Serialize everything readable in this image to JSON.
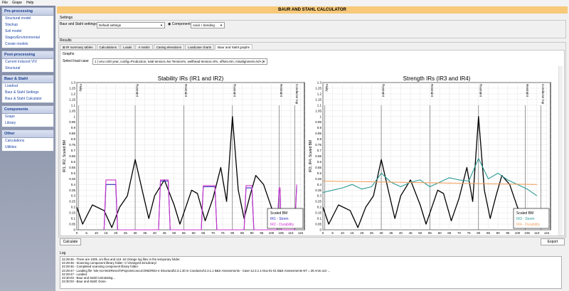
{
  "menu": [
    "File",
    "Grape",
    "Help"
  ],
  "sidebar": [
    {
      "head": "Pre-processing",
      "items": [
        "Structural model",
        "Stackup",
        "Soil model",
        "Stages/Environmental",
        "Create models"
      ]
    },
    {
      "head": "Post-processing",
      "items": [
        "Current induced VIV",
        "Structural"
      ]
    },
    {
      "head": "Baur & Stahl",
      "items": [
        "Loadout",
        "Baur & Stahl Settings",
        "Baur & Stahl Calculator"
      ]
    },
    {
      "head": "Components",
      "items": [
        "Grape",
        "Library"
      ]
    },
    {
      "head": "Other",
      "items": [
        "Calculations",
        "Utilities"
      ]
    }
  ],
  "title": "BAUR AND STAHL CALCULATOR",
  "settings": {
    "group": "Settings",
    "label": "Baur and Stahl settings",
    "value": "Default settings",
    "radio": "Component",
    "component_value": "Axial + bending"
  },
  "results": {
    "group": "Results",
    "tabs": [
      "IR summary tables",
      "Calculations",
      "Loads",
      "A matrix",
      "Casing elevations",
      "Loadcase charts",
      "Baur and Stahl graphs"
    ],
    "active_tab": 6,
    "graphs_label": "Graphs",
    "loadcase_label": "Select load case",
    "loadcase_value": "1 ( env=100 year, config=Production, total tension=No Tension%, wellhead tension=0%, offset=0m, misalignment=N/A )"
  },
  "buttons": {
    "calculate": "Calculate",
    "export": "Export"
  },
  "log": {
    "label": "Log",
    "lines": [
      "22:29:45 - There are 1005 .xrs files and 119 .txt Orange log files in the temporary folder.",
      "22:29:45 - Scanning component library folder: C:\\Orange\\3.51\\Library\\",
      "22:29:46 - Completed scanning component library folder.",
      "22:29:47 - Loading file 'Isle-ron-9e3rResrch\\ProjectsConcoCONE\\RE2-4 Structural\\2.3.1.30 in Conductor\\2.3.1.1 B&S Assessments - Case-12.3.1.1-01a-01-01 B&S Assessments NT = 25 Anm.ora' ...",
      "22:29:47 - Loaded.",
      "22:30:03 - Baur and Stahl Calculating...",
      "22:30:03 - Baur and Stahl: Done."
    ]
  },
  "colors": {
    "titlebar": "#f7c979",
    "sidebar_head": "#1b3e8f",
    "scaled_bm": "#000000",
    "ir_storm_left": "#2b2bb8",
    "ir_durability_left": "#cc33cc",
    "ir_storm_right": "#2a9a95",
    "ir_durability_right": "#f0a060"
  },
  "chart_data": [
    {
      "type": "line",
      "title": "Stability IRs (IR1 and IR2)",
      "ylabel": "IR1, IR2, Scaled BM",
      "xlim": [
        0,
        117
      ],
      "ylim": [
        0,
        1.3
      ],
      "xticks": [
        0,
        5,
        10,
        15,
        20,
        25,
        30,
        35,
        40,
        45,
        50,
        55,
        60,
        65,
        70,
        75,
        80,
        85,
        90,
        95,
        100,
        105,
        110,
        115
      ],
      "yticks": [
        0,
        0.05,
        0.1,
        0.15,
        0.2,
        0.25,
        0.3,
        0.35,
        0.4,
        0.45,
        0.5,
        0.55,
        0.6,
        0.65,
        0.7,
        0.75,
        0.8,
        0.85,
        0.9,
        0.95,
        1,
        1.05,
        1.1,
        1.15,
        1.2,
        1.25,
        1.3
      ],
      "annotations": [
        {
          "x": 1,
          "label": "Fixity"
        },
        {
          "x": 30,
          "label": "Restraint"
        },
        {
          "x": 55,
          "label": "Restraint"
        },
        {
          "x": 80,
          "label": "Restraint"
        },
        {
          "x": 104,
          "label": "Restraint"
        },
        {
          "x": 112,
          "label": "Conductor top"
        }
      ],
      "legend_position": "bottom-right",
      "series": [
        {
          "name": "Scaled BM",
          "x": [
            0,
            3,
            8,
            14,
            18,
            22,
            26,
            30,
            34,
            37,
            40,
            45,
            50,
            53,
            56,
            59,
            62,
            66,
            70,
            74,
            77,
            80,
            83,
            86,
            89,
            92,
            96,
            100,
            102,
            104,
            107,
            110,
            113
          ],
          "y": [
            0.2,
            0.05,
            0.22,
            0.17,
            0.02,
            0.2,
            0.3,
            0.62,
            0.32,
            0.1,
            0.3,
            0.44,
            0.22,
            0.05,
            0.2,
            0.35,
            0.32,
            0.08,
            0.28,
            0.55,
            0.25,
            1.0,
            0.35,
            0.1,
            0.3,
            0.48,
            0.4,
            0.2,
            0.12,
            0.05,
            0.15,
            0.05,
            0.02
          ]
        },
        {
          "name": "IR1 - Storm",
          "x": [
            14,
            15,
            20,
            21,
            42,
            43,
            47,
            48,
            64,
            65,
            71,
            72,
            86,
            87,
            90,
            91,
            103,
            104,
            104.5,
            105,
            112,
            113
          ],
          "y": [
            0,
            0.4,
            0.4,
            0,
            0,
            0.43,
            0.43,
            0,
            0,
            0.38,
            0.38,
            0,
            0,
            0.37,
            0.37,
            0,
            0,
            0.35,
            0.35,
            0,
            0,
            0.38
          ]
        },
        {
          "name": "IR2 - Durability",
          "x": [
            14,
            15,
            20,
            21,
            42,
            43,
            47,
            48,
            64,
            65,
            71,
            72,
            86,
            87,
            90,
            91,
            103,
            104,
            104.5,
            105,
            112,
            113
          ],
          "y": [
            0,
            0.44,
            0.44,
            0,
            0,
            0.44,
            0.44,
            0,
            0,
            0.39,
            0.39,
            0,
            0,
            0.39,
            0.39,
            0,
            0,
            0.37,
            0.37,
            0,
            0,
            0.4
          ]
        }
      ]
    },
    {
      "type": "line",
      "title": "Strength IRs (IR3 and IR4)",
      "ylabel": "IR3, IR4, Scaled BM",
      "xlim": [
        0,
        117
      ],
      "ylim": [
        0,
        1.3
      ],
      "xticks": [
        0,
        5,
        10,
        15,
        20,
        25,
        30,
        35,
        40,
        45,
        50,
        55,
        60,
        65,
        70,
        75,
        80,
        85,
        90,
        95,
        100,
        105,
        110,
        115
      ],
      "yticks": [
        0,
        0.05,
        0.1,
        0.15,
        0.2,
        0.25,
        0.3,
        0.35,
        0.4,
        0.45,
        0.5,
        0.55,
        0.6,
        0.65,
        0.7,
        0.75,
        0.8,
        0.85,
        0.9,
        0.95,
        1,
        1.05,
        1.1,
        1.15,
        1.2,
        1.25,
        1.3
      ],
      "annotations": [
        {
          "x": 1,
          "label": "Fixity"
        },
        {
          "x": 30,
          "label": "Restraint"
        },
        {
          "x": 55,
          "label": "Restraint"
        },
        {
          "x": 80,
          "label": "Restraint"
        },
        {
          "x": 104,
          "label": "Restraint"
        },
        {
          "x": 112,
          "label": "Conductor top"
        }
      ],
      "legend_position": "bottom-right",
      "series": [
        {
          "name": "Scaled BM",
          "x": [
            0,
            3,
            8,
            14,
            18,
            22,
            26,
            30,
            34,
            37,
            40,
            45,
            50,
            53,
            56,
            59,
            62,
            66,
            70,
            74,
            77,
            80,
            83,
            86,
            89,
            92,
            96,
            100,
            104,
            108,
            112
          ],
          "y": [
            0.2,
            0.05,
            0.22,
            0.17,
            0.02,
            0.2,
            0.3,
            0.62,
            0.32,
            0.1,
            0.3,
            0.44,
            0.22,
            0.05,
            0.2,
            0.35,
            0.32,
            0.08,
            0.28,
            0.55,
            0.25,
            1.0,
            0.35,
            0.1,
            0.3,
            0.48,
            0.4,
            0.2,
            0.05,
            0.15,
            0.05
          ]
        },
        {
          "name": "IR3 - Storm",
          "x": [
            0,
            5,
            10,
            15,
            20,
            25,
            30,
            35,
            40,
            45,
            50,
            55,
            60,
            65,
            70,
            75,
            80,
            85,
            90,
            95,
            100,
            105,
            110
          ],
          "y": [
            0.33,
            0.35,
            0.37,
            0.4,
            0.36,
            0.38,
            0.5,
            0.42,
            0.38,
            0.42,
            0.44,
            0.38,
            0.42,
            0.46,
            0.44,
            0.43,
            0.63,
            0.45,
            0.5,
            0.44,
            0.4,
            0.36,
            0.3
          ]
        },
        {
          "name": "IR4 - Durability",
          "x": [
            0,
            110
          ],
          "y": [
            0.43,
            0.4
          ]
        }
      ]
    }
  ]
}
